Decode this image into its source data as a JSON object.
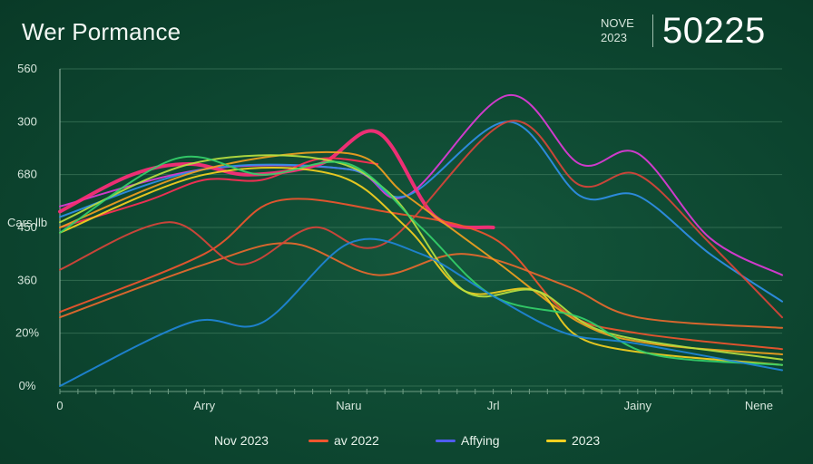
{
  "header": {
    "title": "Wer Pormance",
    "date_line1": "NOVE",
    "date_line2": "2023",
    "headline_value": "50225"
  },
  "chart_data": {
    "type": "line",
    "title": "Wer Pormance",
    "ylabel": "Cars llb",
    "xlabel": "",
    "ytick_labels": [
      "0%",
      "20%",
      "360",
      "450",
      "680",
      "300",
      "560"
    ],
    "xtick_labels": [
      "0",
      "Arry",
      "Naru",
      "Jrl",
      "Jainy",
      "Nene"
    ],
    "xlim": [
      0,
      100
    ],
    "ylim": [
      0,
      6
    ],
    "grid": true,
    "legend_position": "bottom",
    "legend": [
      {
        "label": "Nov 2023",
        "color": "#ff2d7a"
      },
      {
        "label": "av 2022",
        "color": "#f0552e"
      },
      {
        "label": "Affying",
        "color": "#4f5cf0"
      },
      {
        "label": "2023",
        "color": "#f5d020"
      }
    ],
    "series": [
      {
        "color": "#e03ad8",
        "points": [
          [
            0,
            3.4
          ],
          [
            20,
            4.1
          ],
          [
            40,
            4.1
          ],
          [
            48,
            3.6
          ],
          [
            62,
            5.5
          ],
          [
            72,
            4.2
          ],
          [
            80,
            4.4
          ],
          [
            90,
            2.8
          ],
          [
            100,
            2.1
          ]
        ]
      },
      {
        "color": "#2f8fe8",
        "points": [
          [
            0,
            3.2
          ],
          [
            20,
            4.1
          ],
          [
            40,
            4.1
          ],
          [
            48,
            3.6
          ],
          [
            62,
            5.0
          ],
          [
            72,
            3.6
          ],
          [
            80,
            3.6
          ],
          [
            90,
            2.5
          ],
          [
            100,
            1.6
          ]
        ]
      },
      {
        "color": "#ff2d7a",
        "points": [
          [
            0,
            3.3
          ],
          [
            10,
            4.0
          ],
          [
            18,
            4.2
          ],
          [
            26,
            4.0
          ],
          [
            36,
            4.2
          ],
          [
            44,
            4.8
          ],
          [
            52,
            3.2
          ],
          [
            60,
            3.0
          ]
        ]
      },
      {
        "color": "#ff2e55",
        "points": [
          [
            0,
            3.0
          ],
          [
            12,
            3.5
          ],
          [
            20,
            3.9
          ],
          [
            28,
            3.9
          ],
          [
            36,
            4.3
          ],
          [
            44,
            4.2
          ]
        ]
      },
      {
        "color": "#f0552e",
        "points": [
          [
            0,
            1.4
          ],
          [
            20,
            2.5
          ],
          [
            30,
            3.5
          ],
          [
            45,
            3.3
          ],
          [
            60,
            2.8
          ],
          [
            70,
            1.4
          ],
          [
            80,
            1.0
          ],
          [
            100,
            0.7
          ]
        ]
      },
      {
        "color": "#e8692e",
        "points": [
          [
            0,
            1.3
          ],
          [
            20,
            2.3
          ],
          [
            32,
            2.7
          ],
          [
            44,
            2.1
          ],
          [
            56,
            2.5
          ],
          [
            70,
            1.9
          ],
          [
            80,
            1.3
          ],
          [
            100,
            1.1
          ]
        ]
      },
      {
        "color": "#d8443a",
        "points": [
          [
            0,
            2.2
          ],
          [
            15,
            3.1
          ],
          [
            25,
            2.3
          ],
          [
            35,
            3.0
          ],
          [
            45,
            2.7
          ],
          [
            62,
            5.0
          ],
          [
            72,
            3.8
          ],
          [
            80,
            4.0
          ],
          [
            90,
            2.7
          ],
          [
            100,
            1.3
          ]
        ]
      },
      {
        "color": "#f0a020",
        "points": [
          [
            0,
            3.0
          ],
          [
            20,
            4.1
          ],
          [
            40,
            4.4
          ],
          [
            48,
            3.6
          ],
          [
            60,
            2.4
          ],
          [
            72,
            1.2
          ],
          [
            82,
            0.8
          ],
          [
            100,
            0.6
          ]
        ]
      },
      {
        "color": "#f5d020",
        "points": [
          [
            0,
            2.9
          ],
          [
            20,
            4.0
          ],
          [
            38,
            4.0
          ],
          [
            48,
            3.0
          ],
          [
            56,
            1.8
          ],
          [
            66,
            1.8
          ],
          [
            74,
            0.8
          ],
          [
            100,
            0.4
          ]
        ]
      },
      {
        "color": "#b8e040",
        "points": [
          [
            0,
            3.1
          ],
          [
            18,
            4.2
          ],
          [
            36,
            4.3
          ],
          [
            46,
            3.6
          ],
          [
            56,
            1.8
          ],
          [
            66,
            1.8
          ],
          [
            76,
            1.0
          ],
          [
            100,
            0.5
          ]
        ]
      },
      {
        "color": "#34d06a",
        "points": [
          [
            0,
            2.9
          ],
          [
            16,
            4.3
          ],
          [
            28,
            4.0
          ],
          [
            40,
            4.2
          ],
          [
            50,
            3.0
          ],
          [
            60,
            1.7
          ],
          [
            72,
            1.3
          ],
          [
            82,
            0.6
          ],
          [
            100,
            0.4
          ]
        ]
      },
      {
        "color": "#1f86d8",
        "points": [
          [
            0,
            0.0
          ],
          [
            18,
            1.2
          ],
          [
            28,
            1.2
          ],
          [
            40,
            2.7
          ],
          [
            50,
            2.5
          ],
          [
            60,
            1.7
          ],
          [
            70,
            1.0
          ],
          [
            80,
            0.8
          ],
          [
            100,
            0.3
          ]
        ]
      }
    ]
  }
}
